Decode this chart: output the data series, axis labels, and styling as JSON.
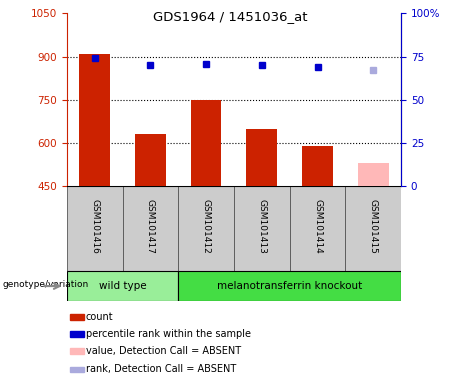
{
  "title": "GDS1964 / 1451036_at",
  "samples": [
    "GSM101416",
    "GSM101417",
    "GSM101412",
    "GSM101413",
    "GSM101414",
    "GSM101415"
  ],
  "bar_values": [
    910,
    630,
    750,
    650,
    590,
    530
  ],
  "bar_colors": [
    "#cc2200",
    "#cc2200",
    "#cc2200",
    "#cc2200",
    "#cc2200",
    "#ffb8b8"
  ],
  "rank_values": [
    74,
    70,
    71,
    70,
    69,
    67
  ],
  "rank_colors": [
    "#0000cc",
    "#0000cc",
    "#0000cc",
    "#0000cc",
    "#0000cc",
    "#aaaadd"
  ],
  "ylim_left": [
    450,
    1050
  ],
  "ylim_right": [
    0,
    100
  ],
  "yticks_left": [
    450,
    600,
    750,
    900,
    1050
  ],
  "ytick_labels_left": [
    "450",
    "600",
    "750",
    "900",
    "1050"
  ],
  "yticks_right": [
    0,
    25,
    50,
    75,
    100
  ],
  "ytick_labels_right": [
    "0",
    "25",
    "50",
    "75",
    "100%"
  ],
  "hlines": [
    600,
    750,
    900
  ],
  "group_labels": [
    "wild type",
    "melanotransferrin knockout"
  ],
  "group_ranges": [
    [
      0,
      2
    ],
    [
      2,
      6
    ]
  ],
  "group_colors": [
    "#99ee99",
    "#44dd44"
  ],
  "genotype_label": "genotype/variation",
  "legend_items": [
    {
      "label": "count",
      "color": "#cc2200"
    },
    {
      "label": "percentile rank within the sample",
      "color": "#0000cc"
    },
    {
      "label": "value, Detection Call = ABSENT",
      "color": "#ffb8b8"
    },
    {
      "label": "rank, Detection Call = ABSENT",
      "color": "#aaaadd"
    }
  ],
  "bar_width": 0.55,
  "tick_label_color_left": "#cc2200",
  "tick_label_color_right": "#0000cc",
  "background_color": "#ffffff",
  "plot_bg_color": "#ffffff",
  "grid_color": "#000000",
  "cell_color": "#cccccc",
  "cell_border_color": "#555555"
}
